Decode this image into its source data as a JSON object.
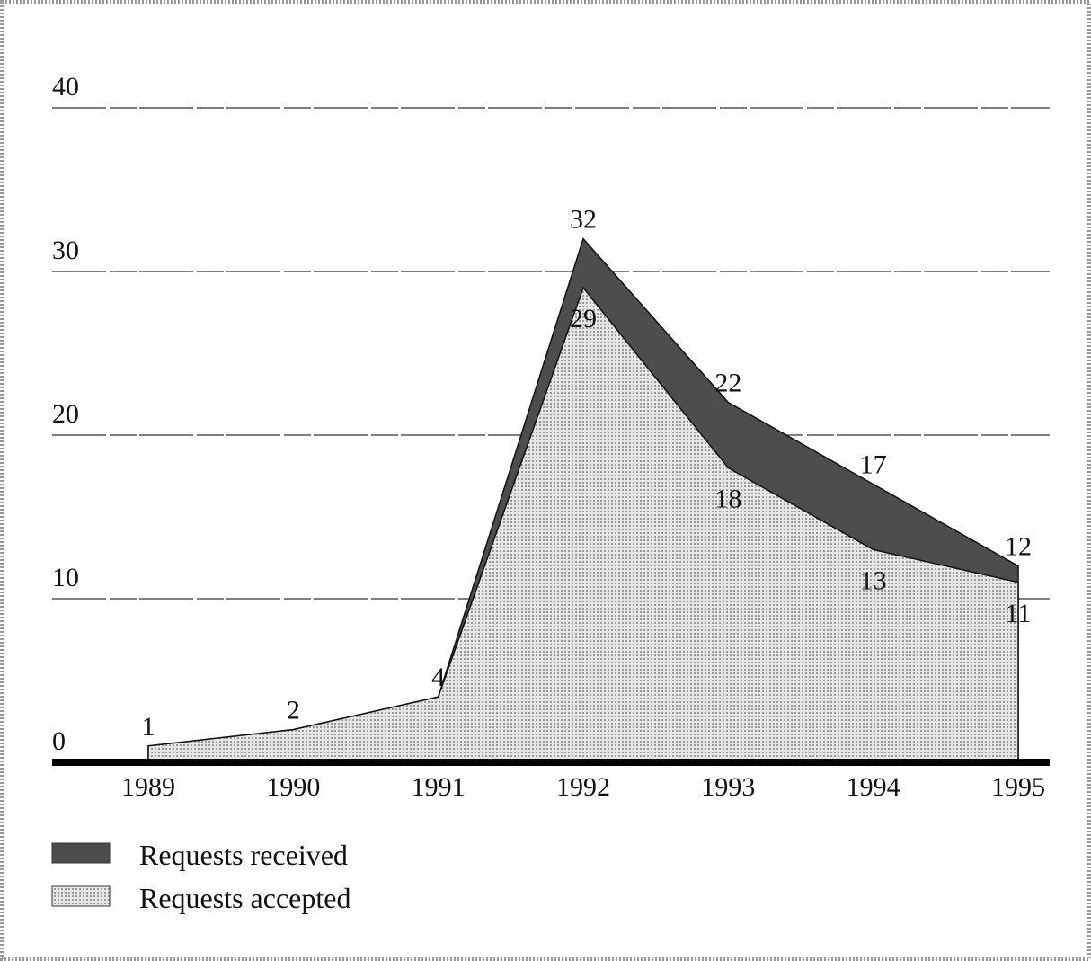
{
  "chart_data": {
    "type": "area",
    "categories": [
      "1989",
      "1990",
      "1991",
      "1992",
      "1993",
      "1994",
      "1995"
    ],
    "series": [
      {
        "name": "Requests received",
        "color": "#4d4d4d",
        "values": [
          1,
          2,
          4,
          32,
          22,
          17,
          12
        ]
      },
      {
        "name": "Requests accepted",
        "color": "#d4d4d4",
        "values": [
          1,
          2,
          4,
          29,
          18,
          13,
          11
        ]
      }
    ],
    "ylim": [
      0,
      40
    ],
    "yticks": [
      0,
      10,
      20,
      30,
      40
    ],
    "grid": true
  }
}
